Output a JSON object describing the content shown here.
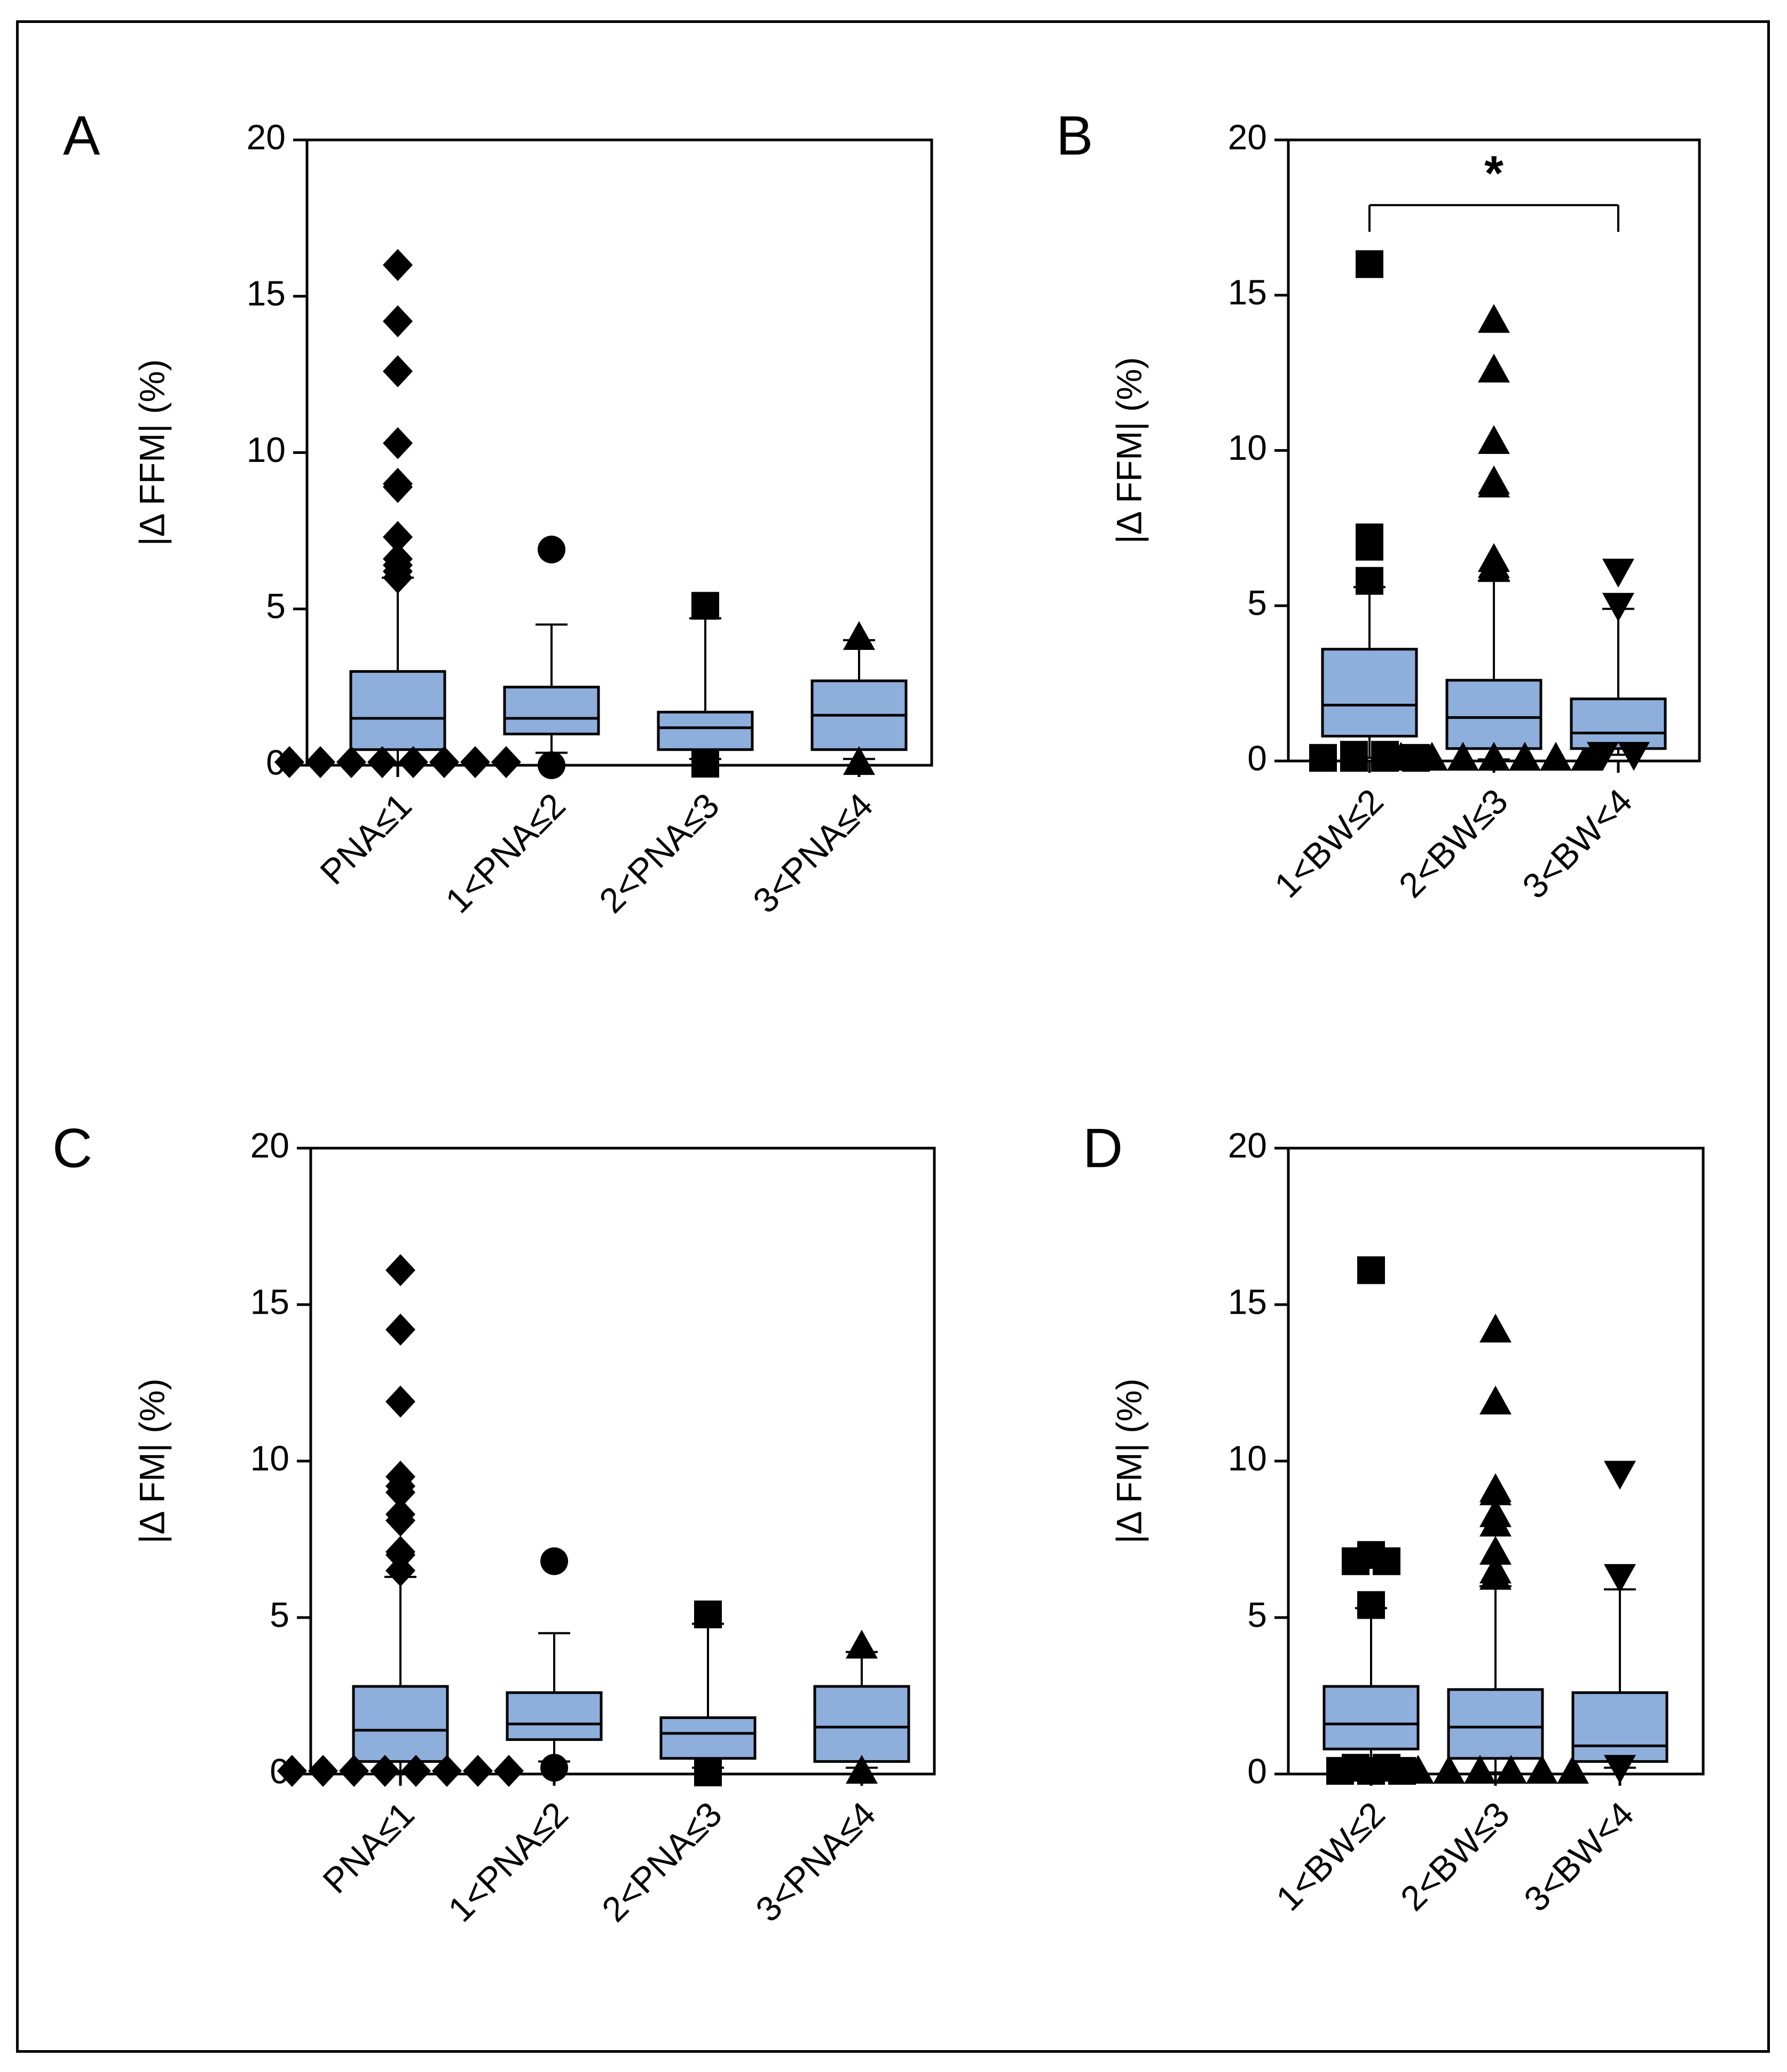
{
  "colors": {
    "box_fill": "#8eaedb",
    "axis": "#000000",
    "background": "#ffffff"
  },
  "chart_data": [
    {
      "type": "boxplot",
      "panel_label": "A",
      "ylabel": "|Δ FFM| (%)",
      "ylim": [
        0,
        20
      ],
      "yticks": [
        "0",
        "5",
        "10",
        "15",
        "20"
      ],
      "categories": [
        "PNA≤1",
        "1<PNA≤2",
        "2<PNA≤3",
        "3<PNA≤4"
      ],
      "boxes": [
        {
          "marker": "diamond",
          "q1": 0.5,
          "median": 1.5,
          "q3": 3.0,
          "whisker_low": 0.05,
          "whisker_high": 6.0,
          "outliers": [
            16.0,
            14.2,
            12.6,
            10.3,
            9.0,
            8.9,
            7.3,
            6.6,
            6.4,
            6.2,
            6.0,
            0.1,
            0.1,
            0.1,
            0.1,
            0.1,
            0.1,
            0.1,
            0.1
          ]
        },
        {
          "marker": "circle",
          "q1": 1.0,
          "median": 1.5,
          "q3": 2.5,
          "whisker_low": 0.4,
          "whisker_high": 4.5,
          "outliers": [
            6.9,
            0.0
          ]
        },
        {
          "marker": "square",
          "q1": 0.5,
          "median": 1.2,
          "q3": 1.7,
          "whisker_low": 0.2,
          "whisker_high": 4.7,
          "outliers": [
            5.1,
            0.05
          ]
        },
        {
          "marker": "triangle-up",
          "q1": 0.5,
          "median": 1.6,
          "q3": 2.7,
          "whisker_low": 0.2,
          "whisker_high": 4.0,
          "outliers": [
            4.1,
            0.1
          ]
        }
      ]
    },
    {
      "type": "boxplot",
      "panel_label": "B",
      "ylabel": "|Δ FFM| (%)",
      "ylim": [
        0,
        20
      ],
      "yticks": [
        "0",
        "5",
        "10",
        "15",
        "20"
      ],
      "categories": [
        "1<BW≤2",
        "2<BW≤3",
        "3<BW<4"
      ],
      "significance": {
        "from": 0,
        "to": 2,
        "y": 17.9,
        "label": "*"
      },
      "boxes": [
        {
          "marker": "square",
          "q1": 0.8,
          "median": 1.8,
          "q3": 3.6,
          "whisker_low": 0.1,
          "whisker_high": 5.6,
          "outliers": [
            16.0,
            7.2,
            7.1,
            6.9,
            5.8,
            0.2,
            0.2,
            0.1,
            0.1,
            0.1,
            0.1
          ]
        },
        {
          "marker": "triangle-up",
          "q1": 0.4,
          "median": 1.4,
          "q3": 2.6,
          "whisker_low": 0.05,
          "whisker_high": 5.8,
          "outliers": [
            14.2,
            12.6,
            10.3,
            9.0,
            8.9,
            6.5,
            6.3,
            6.2,
            0.1,
            0.1,
            0.1,
            0.1,
            0.1,
            0.1,
            0.1
          ]
        },
        {
          "marker": "triangle-down",
          "q1": 0.4,
          "median": 0.9,
          "q3": 2.0,
          "whisker_low": 0.2,
          "whisker_high": 4.9,
          "outliers": [
            6.1,
            5.0,
            0.2,
            0.2
          ]
        }
      ]
    },
    {
      "type": "boxplot",
      "panel_label": "C",
      "ylabel": "|Δ FM| (%)",
      "ylim": [
        0,
        20
      ],
      "yticks": [
        "0",
        "5",
        "10",
        "15",
        "20"
      ],
      "categories": [
        "PNA≤1",
        "1<PNA≤2",
        "2<PNA≤3",
        "3<PNA≤4"
      ],
      "boxes": [
        {
          "marker": "diamond",
          "q1": 0.4,
          "median": 1.4,
          "q3": 2.8,
          "whisker_low": 0.05,
          "whisker_high": 6.3,
          "outliers": [
            16.1,
            14.2,
            11.9,
            9.5,
            9.2,
            9.0,
            8.3,
            8.1,
            7.1,
            7.0,
            6.5,
            0.1,
            0.1,
            0.1,
            0.1,
            0.1,
            0.1,
            0.1,
            0.1
          ]
        },
        {
          "marker": "circle",
          "q1": 1.1,
          "median": 1.6,
          "q3": 2.6,
          "whisker_low": 0.4,
          "whisker_high": 4.5,
          "outliers": [
            6.8,
            0.2
          ]
        },
        {
          "marker": "square",
          "q1": 0.5,
          "median": 1.3,
          "q3": 1.8,
          "whisker_low": 0.2,
          "whisker_high": 4.8,
          "outliers": [
            5.1,
            0.05
          ]
        },
        {
          "marker": "triangle-up",
          "q1": 0.4,
          "median": 1.5,
          "q3": 2.8,
          "whisker_low": 0.2,
          "whisker_high": 3.9,
          "outliers": [
            4.1,
            0.1
          ]
        }
      ]
    },
    {
      "type": "boxplot",
      "panel_label": "D",
      "ylabel": "|Δ FM| (%)",
      "ylim": [
        0,
        20
      ],
      "yticks": [
        "0",
        "5",
        "10",
        "15",
        "20"
      ],
      "categories": [
        "1<BW≤2",
        "2<BW≤3",
        "3<BW<4"
      ],
      "boxes": [
        {
          "marker": "square",
          "q1": 0.8,
          "median": 1.6,
          "q3": 2.8,
          "whisker_low": 0.1,
          "whisker_high": 5.3,
          "outliers": [
            16.1,
            7.0,
            6.8,
            6.8,
            5.4,
            0.2,
            0.2,
            0.1,
            0.1,
            0.1
          ]
        },
        {
          "marker": "triangle-up",
          "q1": 0.5,
          "median": 1.5,
          "q3": 2.7,
          "whisker_low": 0.05,
          "whisker_high": 6.0,
          "outliers": [
            14.2,
            11.9,
            9.1,
            9.0,
            8.3,
            8.0,
            7.1,
            6.5,
            6.3,
            0.1,
            0.1,
            0.1,
            0.1,
            0.1,
            0.1
          ]
        },
        {
          "marker": "triangle-down",
          "q1": 0.4,
          "median": 0.9,
          "q3": 2.6,
          "whisker_low": 0.2,
          "whisker_high": 5.9,
          "outliers": [
            9.6,
            6.3,
            0.2
          ]
        }
      ]
    }
  ]
}
